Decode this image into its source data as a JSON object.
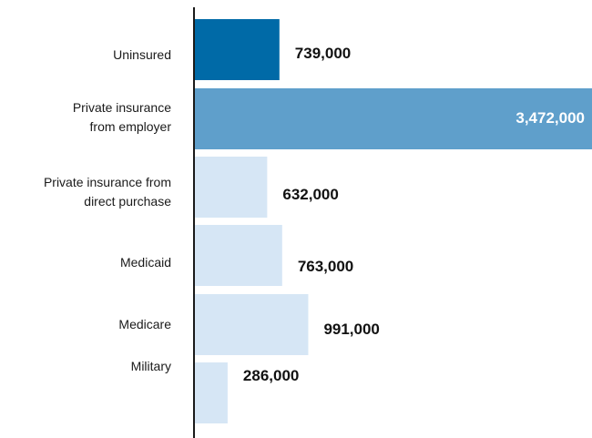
{
  "chart_data": {
    "type": "bar",
    "orientation": "horizontal",
    "title": "",
    "xlabel": "",
    "ylabel": "",
    "categories": [
      "Uninsured",
      "Private insurance\nfrom employer",
      "Private insurance from\ndirect purchase",
      "Medicaid",
      "Medicare",
      "Military"
    ],
    "values": [
      739000,
      3472000,
      632000,
      763000,
      991000,
      286000
    ],
    "value_labels": [
      "739,000",
      "3,472,000",
      "632,000",
      "763,000",
      "991,000",
      "286,000"
    ],
    "colors": [
      "#006aa7",
      "#5f9fcb",
      "#d6e6f5",
      "#d6e6f5",
      "#d6e6f5",
      "#d6e6f5"
    ],
    "xlim": [
      0,
      3472000
    ],
    "grid": false,
    "legend": "none"
  }
}
